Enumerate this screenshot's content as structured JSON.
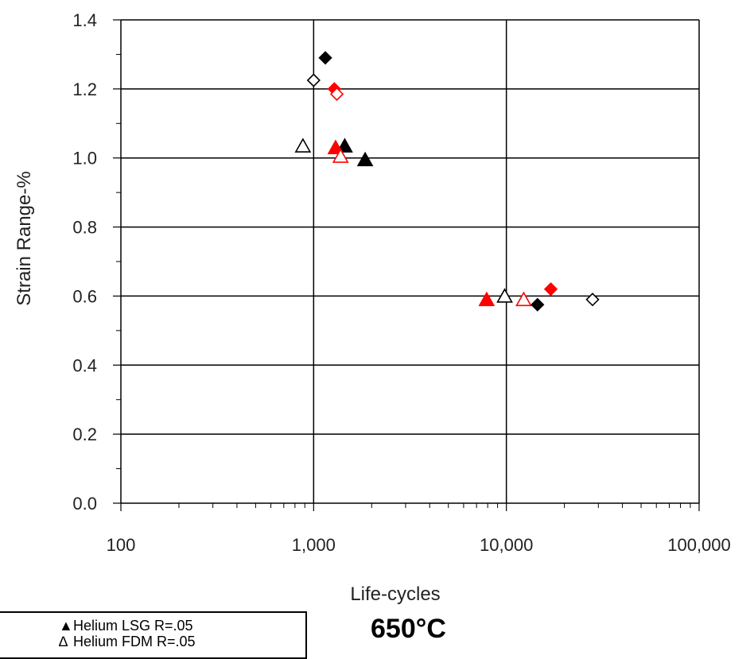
{
  "chart_data": {
    "type": "scatter",
    "title": "650°C",
    "xlabel": "Life-cycles",
    "ylabel": "Strain Range-%",
    "xscale": "log",
    "xlim": [
      100,
      100000
    ],
    "ylim": [
      0.0,
      1.4
    ],
    "xticks": [
      "100",
      "1,000",
      "10,000",
      "100,000"
    ],
    "yticks": [
      "0.0",
      "0.2",
      "0.4",
      "0.6",
      "0.8",
      "1.0",
      "1.2",
      "1.4"
    ],
    "grid": true,
    "legend_position": "bottom-left",
    "series": [
      {
        "name": "Helium LSG R=.05",
        "marker": "triangle",
        "filled": true,
        "color": "#000000",
        "points": [
          [
            1450,
            1.035
          ],
          [
            1850,
            0.995
          ]
        ]
      },
      {
        "marker": "triangle",
        "filled": false,
        "color": "#000000",
        "points": [
          [
            880,
            1.035
          ],
          [
            9800,
            0.6
          ]
        ]
      },
      {
        "marker": "diamond",
        "filled": true,
        "color": "#000000",
        "points": [
          [
            1150,
            1.29
          ],
          [
            14500,
            0.575
          ]
        ]
      },
      {
        "marker": "diamond",
        "filled": false,
        "color": "#000000",
        "points": [
          [
            1000,
            1.225
          ],
          [
            28000,
            0.59
          ]
        ]
      },
      {
        "marker": "triangle",
        "filled": true,
        "color": "#ff0000",
        "points": [
          [
            1300,
            1.03
          ],
          [
            7900,
            0.59
          ]
        ]
      },
      {
        "marker": "triangle",
        "filled": false,
        "color": "#ff0000",
        "points": [
          [
            1380,
            1.005
          ],
          [
            12300,
            0.59
          ]
        ]
      },
      {
        "marker": "diamond",
        "filled": true,
        "color": "#ff0000",
        "points": [
          [
            1280,
            1.2
          ],
          [
            17000,
            0.62
          ]
        ]
      },
      {
        "marker": "diamond",
        "filled": false,
        "color": "#ff0000",
        "points": [
          [
            1320,
            1.185
          ]
        ]
      }
    ]
  },
  "legend": {
    "entry1": "Helium LSG R=.05",
    "entry2": "Helium FDM R=.05",
    "entry1_symbol": "▲",
    "entry2_symbol": "∆"
  },
  "edge_glyph": ")"
}
